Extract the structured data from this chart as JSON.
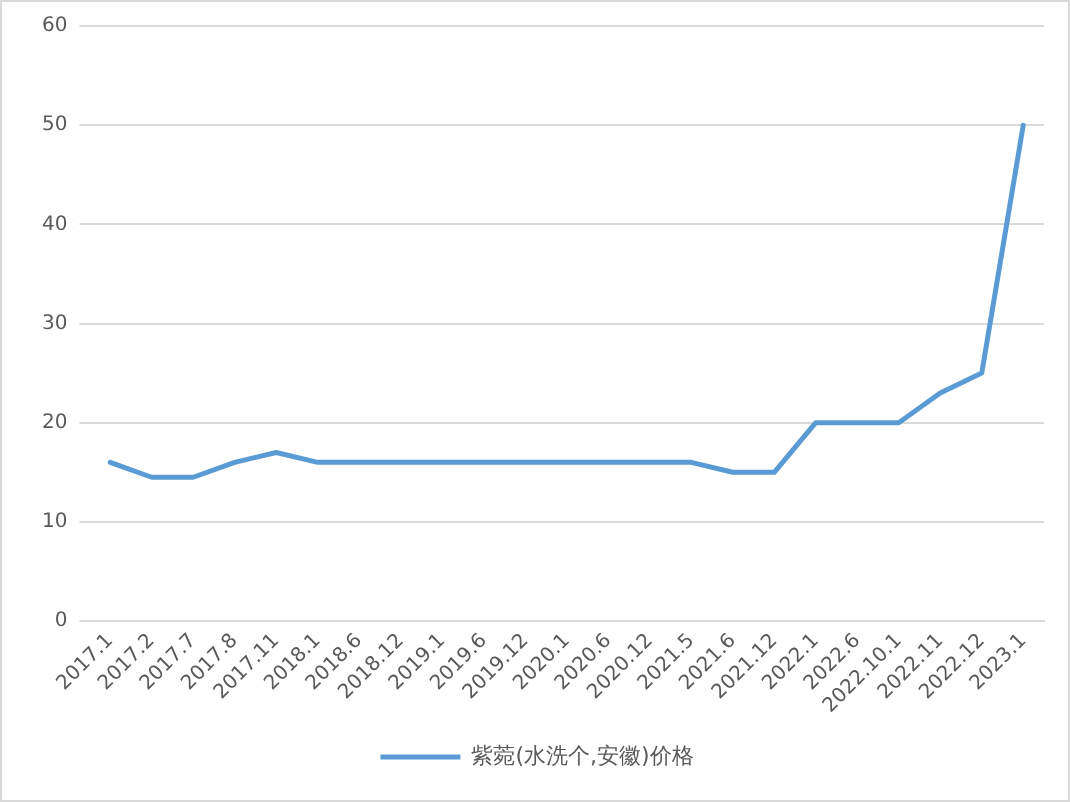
{
  "chart_data": {
    "type": "line",
    "categories": [
      "2017.1",
      "2017.2",
      "2017.7",
      "2017.8",
      "2017.11",
      "2018.1",
      "2018.6",
      "2018.12",
      "2019.1",
      "2019.6",
      "2019.12",
      "2020.1",
      "2020.6",
      "2020.12",
      "2021.5",
      "2021.6",
      "2021.12",
      "2022.1",
      "2022.6",
      "2022.10.1",
      "2022.11",
      "2022.12",
      "2023.1"
    ],
    "series": [
      {
        "name": "紫菀(水洗个,安徽)价格",
        "color": "#5b9bd5",
        "values": [
          16,
          14.5,
          14.5,
          16,
          17,
          16,
          16,
          16,
          16,
          16,
          16,
          16,
          16,
          16,
          16,
          15,
          15,
          20,
          20,
          20,
          23,
          25,
          50
        ]
      }
    ],
    "ylim": [
      0,
      60
    ],
    "yticks": [
      0,
      10,
      20,
      30,
      40,
      50,
      60
    ],
    "grid": "y",
    "legend": "bottom",
    "marker": "none"
  }
}
